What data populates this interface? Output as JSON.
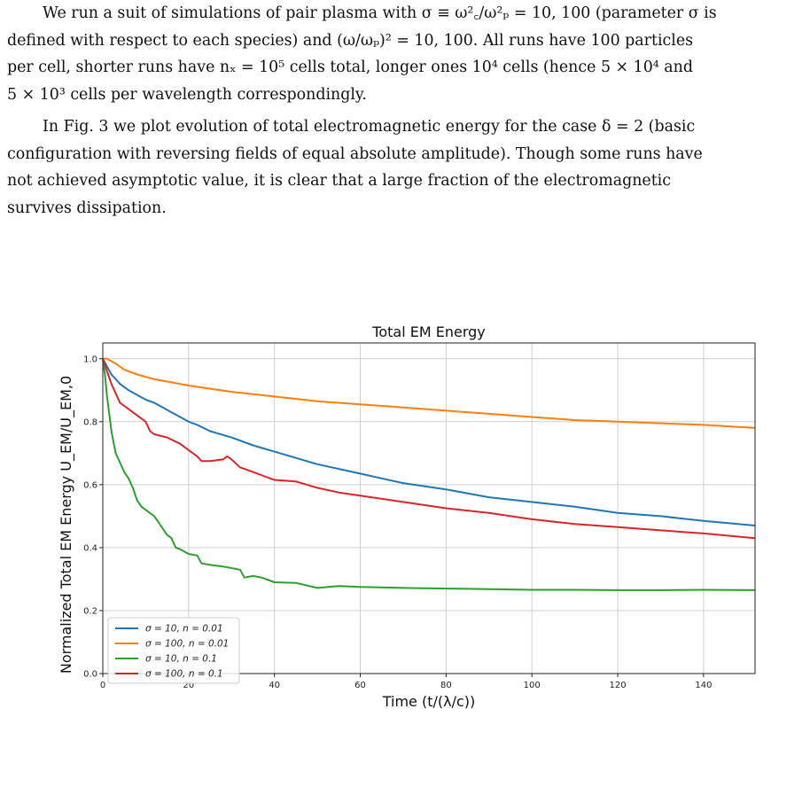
{
  "paragraph1": {
    "lines": [
      "We run a suit of simulations of pair plasma with σ ≡ ω²꜀/ω²ₚ = 10, 100 (parameter σ is",
      "defined with respect to each species) and (ω/ωₚ)² = 10, 100. All runs have 100 particles",
      "per cell, shorter runs have nₓ = 10⁵ cells total, longer ones 10⁴ cells (hence 5 × 10⁴ and",
      "5 × 10³ cells per wavelength correspondingly."
    ]
  },
  "paragraph2": {
    "lines": [
      "In Fig. 3 we plot evolution of total electromagnetic energy for the case δ = 2 (basic",
      "configuration with reversing fields of equal absolute amplitude). Though some runs have",
      "not achieved asymptotic value, it is clear that a large fraction of the electromagnetic",
      "survives dissipation."
    ]
  },
  "chart_data": {
    "type": "line",
    "title": "Total EM Energy",
    "xlabel": "Time (t/(λ/c))",
    "ylabel": "Normalized Total EM Energy U_EM/U_EM,0",
    "xlim": [
      0,
      152
    ],
    "ylim": [
      0,
      1.05
    ],
    "xticks": [
      0,
      20,
      40,
      60,
      80,
      100,
      120,
      140
    ],
    "yticks": [
      0.0,
      0.2,
      0.4,
      0.6,
      0.8,
      1.0
    ],
    "grid": true,
    "legend_position": "lower-left",
    "series": [
      {
        "name": "σ = 10, n = 0.01",
        "color": "#1f77b4",
        "x": [
          0,
          2,
          4,
          6,
          8,
          10,
          12,
          14,
          16,
          18,
          20,
          22,
          25,
          30,
          35,
          40,
          45,
          50,
          55,
          60,
          65,
          70,
          80,
          90,
          100,
          110,
          120,
          130,
          140,
          152
        ],
        "y": [
          1.0,
          0.95,
          0.92,
          0.9,
          0.885,
          0.87,
          0.86,
          0.845,
          0.83,
          0.815,
          0.8,
          0.79,
          0.77,
          0.75,
          0.725,
          0.705,
          0.685,
          0.665,
          0.65,
          0.635,
          0.62,
          0.605,
          0.585,
          0.56,
          0.545,
          0.53,
          0.51,
          0.5,
          0.485,
          0.47
        ]
      },
      {
        "name": "σ = 100, n = 0.01",
        "color": "#ff7f0e",
        "x": [
          0,
          1,
          3,
          5,
          8,
          12,
          16,
          20,
          30,
          40,
          50,
          60,
          70,
          80,
          90,
          100,
          110,
          120,
          130,
          140,
          152
        ],
        "y": [
          1.0,
          1.0,
          0.985,
          0.965,
          0.95,
          0.935,
          0.925,
          0.915,
          0.895,
          0.88,
          0.865,
          0.855,
          0.845,
          0.835,
          0.825,
          0.815,
          0.805,
          0.8,
          0.795,
          0.79,
          0.78
        ]
      },
      {
        "name": "σ = 10, n = 0.1",
        "color": "#2ca02c",
        "x": [
          0,
          0.5,
          1,
          2,
          3,
          4,
          5,
          6,
          7,
          8,
          9,
          10,
          12,
          14,
          15,
          16,
          17,
          18,
          20,
          22,
          23,
          25,
          28,
          32,
          33,
          35,
          37,
          40,
          45,
          50,
          55,
          60,
          70,
          80,
          90,
          100,
          110,
          120,
          130,
          140,
          152
        ],
        "y": [
          1.0,
          0.95,
          0.88,
          0.77,
          0.7,
          0.67,
          0.64,
          0.62,
          0.59,
          0.55,
          0.53,
          0.52,
          0.5,
          0.46,
          0.44,
          0.43,
          0.4,
          0.395,
          0.38,
          0.375,
          0.35,
          0.345,
          0.34,
          0.33,
          0.305,
          0.31,
          0.305,
          0.29,
          0.288,
          0.272,
          0.278,
          0.275,
          0.272,
          0.27,
          0.268,
          0.266,
          0.266,
          0.265,
          0.265,
          0.266,
          0.265
        ]
      },
      {
        "name": "σ = 100, n = 0.1",
        "color": "#d62728",
        "x": [
          0,
          1,
          2,
          4,
          6,
          8,
          10,
          11,
          12,
          15,
          18,
          20,
          22,
          23,
          25,
          28,
          29,
          30,
          32,
          35,
          38,
          40,
          45,
          50,
          55,
          60,
          70,
          80,
          90,
          100,
          110,
          120,
          130,
          140,
          152
        ],
        "y": [
          1.0,
          0.96,
          0.92,
          0.86,
          0.84,
          0.82,
          0.8,
          0.77,
          0.76,
          0.75,
          0.73,
          0.71,
          0.69,
          0.675,
          0.675,
          0.68,
          0.69,
          0.68,
          0.655,
          0.64,
          0.625,
          0.615,
          0.61,
          0.59,
          0.575,
          0.565,
          0.545,
          0.525,
          0.51,
          0.49,
          0.475,
          0.465,
          0.455,
          0.445,
          0.43
        ]
      }
    ]
  }
}
